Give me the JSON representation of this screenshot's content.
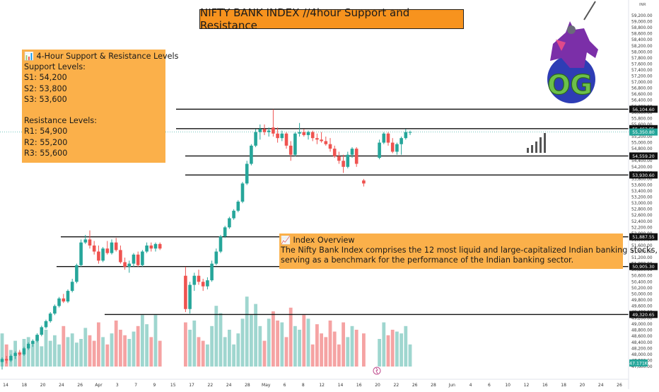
{
  "title": "NIFTY BANK INDEX //4hour Support and Resistance",
  "currency": "INR",
  "logo_text": "OG",
  "levels_box": {
    "heading": "📊 4-Hour Support & Resistance Levels",
    "support_title": "Support Levels:",
    "support": [
      "S1: 54,200",
      "S2: 53,800",
      "S3: 53,600"
    ],
    "resistance_title": "Resistance Levels:",
    "resistance": [
      "R1: 54,900",
      "R2: 55,200",
      "R3: 55,600"
    ]
  },
  "overview_box": {
    "heading": "📈 Index Overview",
    "line1": "The Nifty Bank Index comprises the 12 most liquid and large-capitalized Indian banking stocks,",
    "line2": " serving as a benchmark for the performance of the Indian banking sector."
  },
  "colors": {
    "up": "#26a69a",
    "down": "#ef5350",
    "vol_up": "#9fd6cf",
    "vol_down": "#f5a3a3",
    "box": "#fbb04a",
    "title_box": "#f7931e",
    "price_tag": "#26a69a"
  },
  "chart_data": {
    "type": "candlestick",
    "ylim": [
      47600,
      59200
    ],
    "y_ticks": [
      "59,200.00",
      "59,000.00",
      "58,800.00",
      "58,600.00",
      "58,400.00",
      "58,200.00",
      "58,000.00",
      "57,800.00",
      "57,600.00",
      "57,400.00",
      "57,200.00",
      "57,000.00",
      "56,800.00",
      "56,600.00",
      "56,400.00",
      "56,200.00",
      "56,000.00",
      "55,800.00",
      "55,600.00",
      "55,400.00",
      "55,200.00",
      "55,000.00",
      "54,800.00",
      "54,600.00",
      "54,400.00",
      "54,200.00",
      "54,000.00",
      "53,800.00",
      "53,600.00",
      "53,400.00",
      "53,200.00",
      "53,000.00",
      "52,800.00",
      "52,600.00",
      "52,400.00",
      "52,200.00",
      "52,000.00",
      "51,800.00",
      "51,600.00",
      "51,400.00",
      "51,200.00",
      "51,000.00",
      "50,800.00",
      "50,600.00",
      "50,400.00",
      "50,200.00",
      "50,000.00",
      "49,800.00",
      "49,600.00",
      "49,400.00",
      "49,200.00",
      "49,000.00",
      "48,800.00",
      "48,600.00",
      "48,400.00",
      "48,200.00",
      "48,000.00",
      "47,800.00",
      "47,600.00"
    ],
    "x_ticks": [
      "14",
      "18",
      "20",
      "24",
      "26",
      "Apr",
      "3",
      "7",
      "9",
      "15",
      "17",
      "22",
      "24",
      "28",
      "May",
      "6",
      "8",
      "12",
      "14",
      "16",
      "20",
      "22",
      "26",
      "28",
      "Jun",
      "4",
      "6",
      "10",
      "12",
      "16",
      "18",
      "20",
      "24",
      "26"
    ],
    "levels": [
      {
        "value": 56104.6,
        "label": "56,104.60"
      },
      {
        "value": 55462.85,
        "label": "55,462.85"
      },
      {
        "value": 54559.2,
        "label": "54,559.20"
      },
      {
        "value": 53930.6,
        "label": "53,930.60"
      },
      {
        "value": 51887.55,
        "label": "51,887.55"
      },
      {
        "value": 50905.3,
        "label": "50,905.30"
      },
      {
        "value": 49320.65,
        "label": "49,320.65"
      }
    ],
    "current_price": {
      "value": 55350.8,
      "label": "55,350.80"
    },
    "volume_label": "47.171K",
    "candles": [
      {
        "o": 47750,
        "h": 47900,
        "l": 47500,
        "c": 47850
      },
      {
        "o": 47850,
        "h": 47950,
        "l": 47700,
        "c": 47800
      },
      {
        "o": 47800,
        "h": 48000,
        "l": 47750,
        "c": 47950
      },
      {
        "o": 47950,
        "h": 48100,
        "l": 47850,
        "c": 48050
      },
      {
        "o": 48050,
        "h": 48150,
        "l": 47950,
        "c": 48000
      },
      {
        "o": 48000,
        "h": 48250,
        "l": 47950,
        "c": 48200
      },
      {
        "o": 48200,
        "h": 48400,
        "l": 48150,
        "c": 48350
      },
      {
        "o": 48350,
        "h": 48500,
        "l": 48250,
        "c": 48450
      },
      {
        "o": 48450,
        "h": 48700,
        "l": 48400,
        "c": 48650
      },
      {
        "o": 48650,
        "h": 48950,
        "l": 48600,
        "c": 48900
      },
      {
        "o": 48900,
        "h": 49150,
        "l": 48850,
        "c": 49100
      },
      {
        "o": 49100,
        "h": 49400,
        "l": 49050,
        "c": 49350
      },
      {
        "o": 49350,
        "h": 49650,
        "l": 49300,
        "c": 49600
      },
      {
        "o": 49600,
        "h": 49900,
        "l": 49550,
        "c": 49850
      },
      {
        "o": 49850,
        "h": 50000,
        "l": 49700,
        "c": 49750
      },
      {
        "o": 49750,
        "h": 50150,
        "l": 49700,
        "c": 50100
      },
      {
        "o": 50100,
        "h": 50500,
        "l": 50050,
        "c": 50400
      },
      {
        "o": 50400,
        "h": 51000,
        "l": 50350,
        "c": 50950
      },
      {
        "o": 50950,
        "h": 51800,
        "l": 50900,
        "c": 51700
      },
      {
        "o": 51700,
        "h": 51950,
        "l": 51650,
        "c": 51800
      },
      {
        "o": 51800,
        "h": 52100,
        "l": 51500,
        "c": 51600
      },
      {
        "o": 51600,
        "h": 51750,
        "l": 51300,
        "c": 51400
      },
      {
        "o": 51400,
        "h": 51600,
        "l": 51000,
        "c": 51100
      },
      {
        "o": 51100,
        "h": 51550,
        "l": 51050,
        "c": 51500
      },
      {
        "o": 51500,
        "h": 51750,
        "l": 51300,
        "c": 51350
      },
      {
        "o": 51350,
        "h": 51800,
        "l": 51300,
        "c": 51700
      },
      {
        "o": 51700,
        "h": 51850,
        "l": 51400,
        "c": 51450
      },
      {
        "o": 51450,
        "h": 51600,
        "l": 51000,
        "c": 51050
      },
      {
        "o": 51050,
        "h": 51200,
        "l": 50800,
        "c": 50900
      },
      {
        "o": 50900,
        "h": 51100,
        "l": 50700,
        "c": 51000
      },
      {
        "o": 51000,
        "h": 51350,
        "l": 50900,
        "c": 51300
      },
      {
        "o": 51300,
        "h": 51400,
        "l": 50900,
        "c": 50950
      },
      {
        "o": 50950,
        "h": 51450,
        "l": 50900,
        "c": 51400
      },
      {
        "o": 51400,
        "h": 51700,
        "l": 51350,
        "c": 51600
      },
      {
        "o": 51600,
        "h": 51700,
        "l": 51400,
        "c": 51500
      },
      {
        "o": 51500,
        "h": 51700,
        "l": 51400,
        "c": 51650
      },
      {
        "o": 51650,
        "h": 51700,
        "l": 51450,
        "c": 51500
      },
      {
        "o": 50600,
        "h": 50900,
        "l": 49400,
        "c": 49500
      },
      {
        "o": 49500,
        "h": 50400,
        "l": 49350,
        "c": 50300
      },
      {
        "o": 50300,
        "h": 50700,
        "l": 50100,
        "c": 50600
      },
      {
        "o": 50600,
        "h": 50800,
        "l": 50300,
        "c": 50400
      },
      {
        "o": 50400,
        "h": 50500,
        "l": 50100,
        "c": 50250
      },
      {
        "o": 50250,
        "h": 50550,
        "l": 50150,
        "c": 50450
      },
      {
        "o": 50450,
        "h": 51100,
        "l": 50400,
        "c": 51000
      },
      {
        "o": 51000,
        "h": 51500,
        "l": 50950,
        "c": 51400
      },
      {
        "o": 51400,
        "h": 51950,
        "l": 51350,
        "c": 51900
      },
      {
        "o": 51900,
        "h": 52250,
        "l": 51850,
        "c": 52200
      },
      {
        "o": 52200,
        "h": 52550,
        "l": 52150,
        "c": 52500
      },
      {
        "o": 52500,
        "h": 52800,
        "l": 52450,
        "c": 52750
      },
      {
        "o": 52750,
        "h": 53100,
        "l": 52700,
        "c": 53050
      },
      {
        "o": 53050,
        "h": 53700,
        "l": 53000,
        "c": 53650
      },
      {
        "o": 53650,
        "h": 54400,
        "l": 53600,
        "c": 54300
      },
      {
        "o": 54300,
        "h": 54950,
        "l": 54250,
        "c": 54900
      },
      {
        "o": 54900,
        "h": 55450,
        "l": 54850,
        "c": 55350
      },
      {
        "o": 55350,
        "h": 55600,
        "l": 55100,
        "c": 55450
      },
      {
        "o": 55450,
        "h": 55600,
        "l": 55250,
        "c": 55350
      },
      {
        "o": 55350,
        "h": 55500,
        "l": 55200,
        "c": 55400
      },
      {
        "o": 55500,
        "h": 56100,
        "l": 55200,
        "c": 55300
      },
      {
        "o": 55300,
        "h": 55500,
        "l": 55000,
        "c": 55150
      },
      {
        "o": 55150,
        "h": 55400,
        "l": 55050,
        "c": 55300
      },
      {
        "o": 55300,
        "h": 55350,
        "l": 54800,
        "c": 54900
      },
      {
        "o": 54900,
        "h": 55050,
        "l": 54400,
        "c": 54600
      },
      {
        "o": 54600,
        "h": 55350,
        "l": 54550,
        "c": 55300
      },
      {
        "o": 55300,
        "h": 55650,
        "l": 55200,
        "c": 55350
      },
      {
        "o": 55350,
        "h": 55450,
        "l": 55200,
        "c": 55250
      },
      {
        "o": 55250,
        "h": 55400,
        "l": 55100,
        "c": 55350
      },
      {
        "o": 55350,
        "h": 55400,
        "l": 55050,
        "c": 55150
      },
      {
        "o": 55150,
        "h": 55300,
        "l": 54950,
        "c": 55100
      },
      {
        "o": 55100,
        "h": 55350,
        "l": 55000,
        "c": 55050
      },
      {
        "o": 55050,
        "h": 55200,
        "l": 54900,
        "c": 54950
      },
      {
        "o": 54950,
        "h": 55150,
        "l": 54700,
        "c": 54800
      },
      {
        "o": 54800,
        "h": 54900,
        "l": 54500,
        "c": 54550
      },
      {
        "o": 54550,
        "h": 54700,
        "l": 54300,
        "c": 54400
      },
      {
        "o": 54400,
        "h": 54600,
        "l": 54000,
        "c": 54200
      },
      {
        "o": 54200,
        "h": 54700,
        "l": 54150,
        "c": 54600
      },
      {
        "o": 54600,
        "h": 54850,
        "l": 54500,
        "c": 54800
      },
      {
        "o": 54800,
        "h": 54850,
        "l": 54200,
        "c": 54300
      },
      {
        "o": 53750,
        "h": 53800,
        "l": 53550,
        "c": 53650
      },
      {
        "o": 54500,
        "h": 55100,
        "l": 54450,
        "c": 55000
      },
      {
        "o": 55000,
        "h": 55350,
        "l": 54950,
        "c": 55300
      },
      {
        "o": 55300,
        "h": 55350,
        "l": 54900,
        "c": 55000
      },
      {
        "o": 55000,
        "h": 55150,
        "l": 54650,
        "c": 54700
      },
      {
        "o": 54700,
        "h": 55000,
        "l": 54600,
        "c": 54950
      },
      {
        "o": 54950,
        "h": 55200,
        "l": 54600,
        "c": 55150
      },
      {
        "o": 55150,
        "h": 55450,
        "l": 55100,
        "c": 55350
      },
      {
        "o": 55350,
        "h": 55400,
        "l": 55250,
        "c": 55350
      }
    ],
    "volume": [
      18,
      12,
      9,
      14,
      8,
      15,
      16,
      13,
      17,
      11,
      20,
      14,
      17,
      12,
      22,
      16,
      18,
      13,
      15,
      21,
      17,
      14,
      24,
      16,
      12,
      18,
      25,
      20,
      17,
      15,
      19,
      22,
      28,
      23,
      16,
      28,
      14,
      24,
      20,
      25,
      16,
      14,
      12,
      22,
      33,
      29,
      16,
      20,
      12,
      18,
      26,
      38,
      28,
      34,
      22,
      14,
      26,
      30,
      25,
      24,
      16,
      32,
      22,
      20,
      28,
      26,
      12,
      23,
      18,
      16,
      25,
      19,
      12,
      24,
      16,
      22,
      20,
      18,
      15,
      24,
      17,
      20,
      19,
      18,
      22,
      12
    ]
  }
}
